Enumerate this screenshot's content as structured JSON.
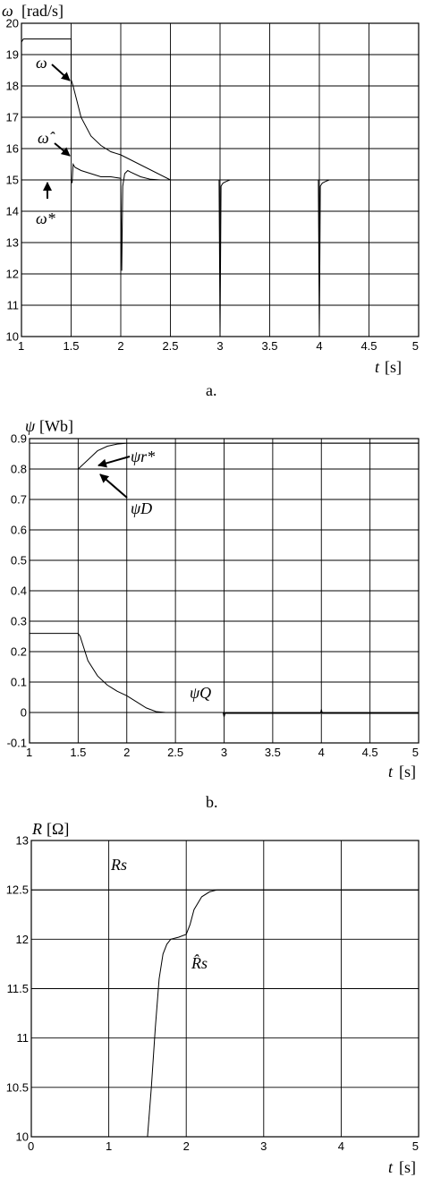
{
  "chart_data": [
    {
      "type": "line",
      "panel_label": "a.",
      "ylabel": {
        "symbol": "ω",
        "unit": "[rad/s]"
      },
      "xlabel": {
        "symbol": "t",
        "unit": "[s]"
      },
      "xlim": [
        1,
        5
      ],
      "ylim": [
        10,
        20
      ],
      "xticks": [
        "1",
        "1.5",
        "2",
        "2.5",
        "3",
        "3.5",
        "4",
        "4.5",
        "5"
      ],
      "yticks": [
        "10",
        "11",
        "12",
        "13",
        "14",
        "15",
        "16",
        "17",
        "18",
        "19",
        "20"
      ],
      "grid": true,
      "annotations": [
        {
          "text": "ω",
          "x": 1.5,
          "y": 18.0
        },
        {
          "text": "ω̂",
          "x": 1.5,
          "y": 15.6
        },
        {
          "text": "ω*",
          "x": 1.3,
          "y": 15.0
        }
      ],
      "series": [
        {
          "x": [
            1,
            1.02,
            1.5,
            1.5,
            1.52,
            1.56,
            1.6,
            1.7,
            1.8,
            1.9,
            2.0,
            2.5,
            5
          ],
          "y": [
            19.4,
            19.5,
            19.5,
            18.2,
            18.0,
            17.5,
            17.0,
            16.4,
            16.1,
            15.9,
            15.8,
            15.0,
            15.0
          ]
        },
        {
          "x": [
            1,
            1.5,
            1.51,
            1.52,
            1.54,
            1.6,
            1.7,
            1.8,
            1.9,
            2.0,
            2.01,
            2.02,
            2.04,
            2.07,
            2.1,
            2.2,
            2.3,
            2.4,
            2.5,
            2.99,
            3.0,
            3.01,
            3.03,
            3.06,
            3.1,
            3.99,
            4.0,
            4.01,
            4.03,
            4.06,
            4.1,
            5
          ],
          "y": [
            15.0,
            15.0,
            14.9,
            15.5,
            15.4,
            15.3,
            15.2,
            15.1,
            15.1,
            15.05,
            12.1,
            14.8,
            15.2,
            15.3,
            15.25,
            15.1,
            15.02,
            15.0,
            15.0,
            15.0,
            10.0,
            14.8,
            14.9,
            14.95,
            15.0,
            15.0,
            10.0,
            14.8,
            14.9,
            14.95,
            15.0,
            15.0
          ]
        },
        {
          "x": [
            1,
            5
          ],
          "y": [
            15.0,
            15.0
          ]
        }
      ]
    },
    {
      "type": "line",
      "panel_label": "b.",
      "ylabel": {
        "symbol": "ψ",
        "unit": "[Wb]"
      },
      "xlabel": {
        "symbol": "t",
        "unit": "[s]"
      },
      "xlim": [
        1,
        5
      ],
      "ylim": [
        -0.1,
        0.9
      ],
      "xticks": [
        "1",
        "1.5",
        "2",
        "2.5",
        "3",
        "3.5",
        "4",
        "4.5",
        "5"
      ],
      "yticks": [
        "-0.1",
        "0",
        "0.1",
        "0.2",
        "0.3",
        "0.4",
        "0.5",
        "0.6",
        "0.7",
        "0.8",
        "0.9"
      ],
      "grid": true,
      "annotations": [
        {
          "text": "ψr*",
          "x": 1.88,
          "y": 0.89
        },
        {
          "text": "ψD",
          "x": 1.9,
          "y": 0.8
        },
        {
          "text": "ψQ",
          "x": 2.6,
          "y": 0.0
        }
      ],
      "series": [
        {
          "x": [
            1,
            5
          ],
          "y": [
            0.885,
            0.885
          ]
        },
        {
          "x": [
            1,
            1.5,
            1.6,
            1.7,
            1.8,
            1.9,
            2.0,
            2.2,
            2.4,
            5
          ],
          "y": [
            0.8,
            0.8,
            0.83,
            0.86,
            0.875,
            0.882,
            0.885,
            0.885,
            0.885,
            0.885
          ]
        },
        {
          "x": [
            1,
            1.5,
            1.52,
            1.6,
            1.7,
            1.8,
            1.9,
            2.0,
            2.1,
            2.2,
            2.3,
            2.4,
            2.99,
            3.0,
            3.01,
            3.99,
            4.0,
            4.01,
            5
          ],
          "y": [
            0.26,
            0.26,
            0.25,
            0.17,
            0.12,
            0.09,
            0.07,
            0.055,
            0.035,
            0.015,
            0.003,
            0.0,
            0.0,
            -0.015,
            -0.003,
            -0.003,
            0.01,
            -0.003,
            -0.003
          ]
        }
      ]
    },
    {
      "type": "line",
      "ylabel": {
        "symbol": "R",
        "unit": "[Ω]"
      },
      "xlabel": {
        "symbol": "t",
        "unit": "[s]"
      },
      "xlim": [
        0,
        5
      ],
      "ylim": [
        10,
        13
      ],
      "xticks": [
        "0",
        "1",
        "2",
        "3",
        "4",
        "5"
      ],
      "yticks": [
        "10",
        "10.5",
        "11",
        "11.5",
        "12",
        "12.5",
        "13"
      ],
      "grid": true,
      "annotations": [
        {
          "text": "Rs",
          "x": 1.0,
          "y": 12.75
        },
        {
          "text": "R̂s",
          "x": 2.05,
          "y": 11.85
        }
      ],
      "series": [
        {
          "x": [
            0,
            5
          ],
          "y": [
            12.5,
            12.5
          ]
        },
        {
          "x": [
            1.5,
            1.55,
            1.6,
            1.65,
            1.7,
            1.75,
            1.8,
            1.9,
            2.0,
            2.05,
            2.1,
            2.2,
            2.3,
            2.4,
            5
          ],
          "y": [
            10.0,
            10.5,
            11.1,
            11.6,
            11.85,
            11.95,
            12.0,
            12.02,
            12.05,
            12.15,
            12.3,
            12.43,
            12.48,
            12.5,
            12.5
          ]
        }
      ]
    }
  ]
}
